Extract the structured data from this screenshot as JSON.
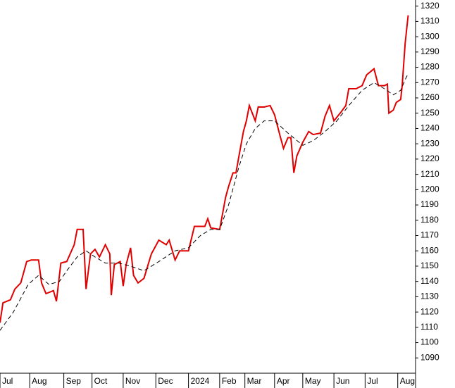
{
  "chart_data": {
    "type": "line",
    "xlim": [
      0,
      280
    ],
    "ylim": [
      1080,
      1324
    ],
    "yticks": [
      1090,
      1100,
      1110,
      1120,
      1130,
      1140,
      1150,
      1160,
      1170,
      1180,
      1190,
      1200,
      1210,
      1220,
      1230,
      1240,
      1250,
      1260,
      1270,
      1280,
      1290,
      1300,
      1310,
      1320
    ],
    "xticks": [
      {
        "value": 0,
        "label": "Jul"
      },
      {
        "value": 20,
        "label": "Aug"
      },
      {
        "value": 43,
        "label": "Sep"
      },
      {
        "value": 62,
        "label": "Oct"
      },
      {
        "value": 83,
        "label": "Nov"
      },
      {
        "value": 105,
        "label": "Dec"
      },
      {
        "value": 127,
        "label": "2024"
      },
      {
        "value": 148,
        "label": "Feb"
      },
      {
        "value": 165,
        "label": "Mar"
      },
      {
        "value": 185,
        "label": "Apr"
      },
      {
        "value": 204,
        "label": "May"
      },
      {
        "value": 225,
        "label": "Jun"
      },
      {
        "value": 246,
        "label": "Jul"
      },
      {
        "value": 268,
        "label": "Aug"
      }
    ],
    "series": [
      {
        "color": "#e00000",
        "dash": false,
        "x": [
          0,
          2,
          7,
          10,
          14,
          18,
          21,
          26,
          28,
          31,
          36,
          38,
          41,
          45,
          50,
          52,
          56,
          58,
          61,
          64,
          67,
          71,
          74,
          75,
          77,
          81,
          83,
          85,
          88,
          90,
          93,
          97,
          102,
          107,
          112,
          114,
          118,
          121,
          127,
          131,
          138,
          140,
          142,
          148,
          152,
          154,
          157,
          159,
          161,
          164,
          166,
          168,
          172,
          174,
          178,
          182,
          185,
          189,
          191,
          194,
          196,
          198,
          200,
          204,
          208,
          211,
          216,
          219,
          222,
          225,
          230,
          233,
          235,
          240,
          244,
          247,
          252,
          255,
          259,
          261,
          262,
          265,
          267,
          270,
          271,
          273,
          275
        ],
        "values": [
          1113,
          1126,
          1128,
          1135,
          1139,
          1153,
          1154,
          1154,
          1139,
          1132,
          1134,
          1127,
          1152,
          1153,
          1164,
          1174,
          1174,
          1135,
          1158,
          1161,
          1156,
          1164,
          1158,
          1131,
          1151,
          1153,
          1137,
          1151,
          1162,
          1144,
          1139,
          1142,
          1158,
          1167,
          1164,
          1167,
          1154,
          1160,
          1160,
          1176,
          1176,
          1181,
          1175,
          1174,
          1195,
          1202,
          1211,
          1211,
          1222,
          1238,
          1245,
          1255,
          1245,
          1254,
          1254,
          1255,
          1249,
          1234,
          1227,
          1234,
          1234,
          1211,
          1222,
          1231,
          1238,
          1236,
          1237,
          1248,
          1255,
          1245,
          1251,
          1255,
          1266,
          1266,
          1268,
          1275,
          1279,
          1268,
          1268,
          1269,
          1250,
          1252,
          1257,
          1259,
          1268,
          1296,
          1314
        ]
      },
      {
        "color": "#000000",
        "dash": true,
        "x": [
          0,
          9,
          19,
          26,
          33,
          40,
          45,
          52,
          58,
          64,
          71,
          80,
          88,
          97,
          107,
          118,
          127,
          135,
          142,
          148,
          154,
          161,
          166,
          172,
          178,
          185,
          194,
          204,
          211,
          219,
          227,
          235,
          244,
          252,
          259,
          265,
          270,
          273,
          275
        ],
        "values": [
          1108,
          1120,
          1138,
          1144,
          1138,
          1140,
          1147,
          1156,
          1160,
          1156,
          1152,
          1152,
          1150,
          1147,
          1153,
          1160,
          1162,
          1170,
          1174,
          1174,
          1190,
          1215,
          1230,
          1240,
          1245,
          1245,
          1237,
          1229,
          1232,
          1238,
          1245,
          1255,
          1265,
          1270,
          1266,
          1262,
          1265,
          1272,
          1276
        ]
      }
    ]
  }
}
